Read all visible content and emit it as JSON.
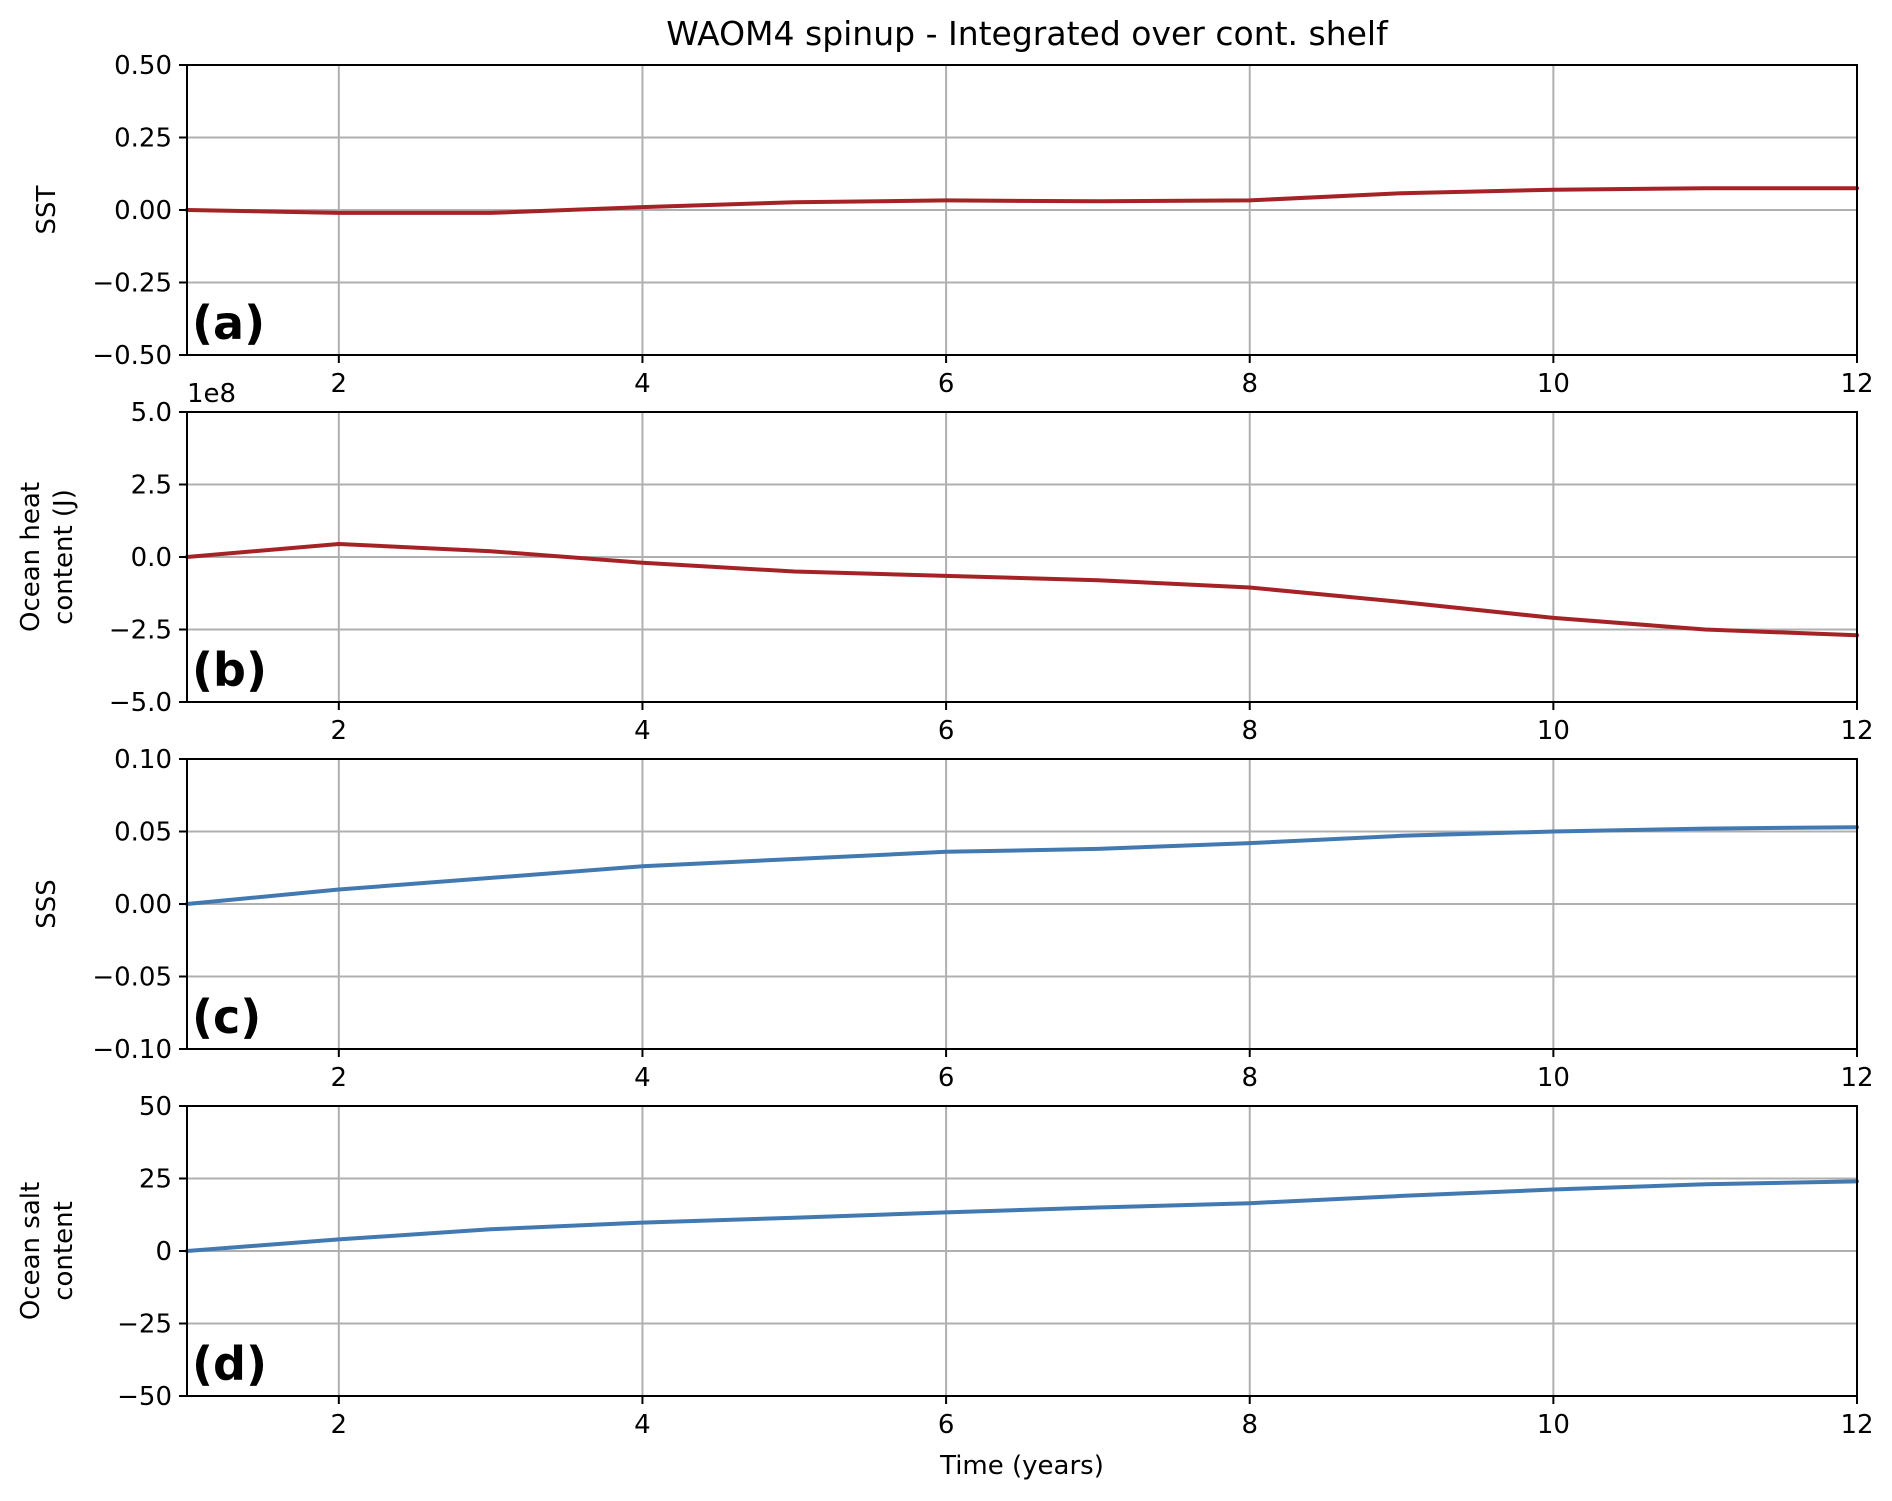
{
  "figure": {
    "title": "WAOM4 spinup - Integrated over cont. shelf"
  },
  "chart_data": [
    {
      "type": "line",
      "panel_label": "(a)",
      "title": "",
      "xlabel": "",
      "ylabel": "SST",
      "offset_text": "",
      "xlim": [
        1,
        12
      ],
      "ylim": [
        -0.5,
        0.5
      ],
      "xticks": [
        2,
        4,
        6,
        8,
        10,
        12
      ],
      "yticks": [
        -0.5,
        -0.25,
        0.0,
        0.25,
        0.5
      ],
      "ytick_labels": [
        "−0.50",
        "−0.25",
        "0.00",
        "0.25",
        "0.50"
      ],
      "grid": true,
      "x": [
        1,
        2,
        3,
        4,
        5,
        6,
        7,
        8,
        9,
        10,
        11,
        12
      ],
      "series": [
        {
          "values": [
            0.0,
            -0.01,
            -0.01,
            0.01,
            0.027,
            0.033,
            0.03,
            0.033,
            0.058,
            0.07,
            0.075,
            0.075
          ],
          "color": "#a52326"
        }
      ]
    },
    {
      "type": "line",
      "panel_label": "(b)",
      "title": "",
      "xlabel": "",
      "ylabel": "Ocean heat\ncontent (J)",
      "offset_text": "1e8",
      "xlim": [
        1,
        12
      ],
      "ylim": [
        -5.0,
        5.0
      ],
      "xticks": [
        2,
        4,
        6,
        8,
        10,
        12
      ],
      "yticks": [
        -5.0,
        -2.5,
        0.0,
        2.5,
        5.0
      ],
      "ytick_labels": [
        "−5.0",
        "−2.5",
        "0.0",
        "2.5",
        "5.0"
      ],
      "grid": true,
      "x": [
        1,
        2,
        3,
        4,
        5,
        6,
        7,
        8,
        9,
        10,
        11,
        12
      ],
      "series": [
        {
          "values": [
            0.0,
            0.45,
            0.2,
            -0.2,
            -0.5,
            -0.65,
            -0.8,
            -1.05,
            -1.55,
            -2.1,
            -2.5,
            -2.7
          ],
          "color": "#a52326"
        }
      ]
    },
    {
      "type": "line",
      "panel_label": "(c)",
      "title": "",
      "xlabel": "",
      "ylabel": "SSS",
      "offset_text": "",
      "xlim": [
        1,
        12
      ],
      "ylim": [
        -0.1,
        0.1
      ],
      "xticks": [
        2,
        4,
        6,
        8,
        10,
        12
      ],
      "yticks": [
        -0.1,
        -0.05,
        0.0,
        0.05,
        0.1
      ],
      "ytick_labels": [
        "−0.10",
        "−0.05",
        "0.00",
        "0.05",
        "0.10"
      ],
      "grid": true,
      "x": [
        1,
        2,
        3,
        4,
        5,
        6,
        7,
        8,
        9,
        10,
        11,
        12
      ],
      "series": [
        {
          "values": [
            0.0,
            0.01,
            0.018,
            0.026,
            0.031,
            0.036,
            0.038,
            0.042,
            0.047,
            0.05,
            0.052,
            0.053
          ],
          "color": "#4279b0"
        }
      ]
    },
    {
      "type": "line",
      "panel_label": "(d)",
      "title": "",
      "xlabel": "Time (years)",
      "ylabel": "Ocean salt\ncontent",
      "offset_text": "",
      "xlim": [
        1,
        12
      ],
      "ylim": [
        -50,
        50
      ],
      "xticks": [
        2,
        4,
        6,
        8,
        10,
        12
      ],
      "yticks": [
        -50,
        -25,
        0,
        25,
        50
      ],
      "ytick_labels": [
        "−50",
        "−25",
        "0",
        "25",
        "50"
      ],
      "grid": true,
      "x": [
        1,
        2,
        3,
        4,
        5,
        6,
        7,
        8,
        9,
        10,
        11,
        12
      ],
      "series": [
        {
          "values": [
            0,
            4,
            7.5,
            9.8,
            11.5,
            13.3,
            15,
            16.5,
            19,
            21.2,
            23,
            24
          ],
          "color": "#4279b0"
        }
      ]
    }
  ]
}
